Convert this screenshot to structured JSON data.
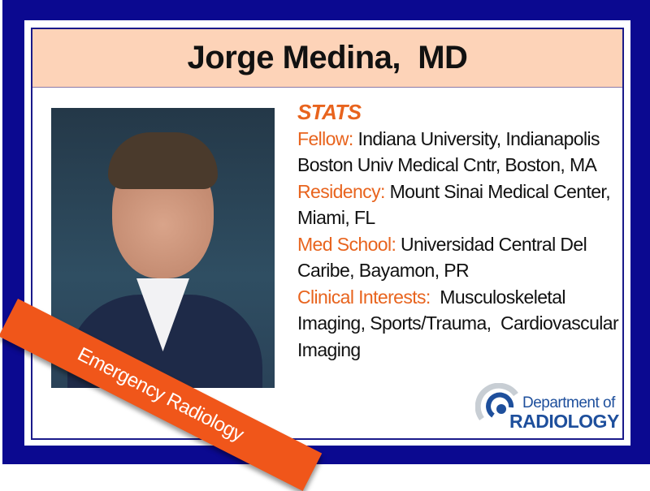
{
  "header": {
    "name": "Jorge Medina,  MD"
  },
  "stats": {
    "title": "STATS",
    "items": [
      {
        "label": "Fellow:",
        "value": " Indiana University, Indianapolis Boston Univ Medical Cntr, Boston, MA"
      },
      {
        "label": "Residency:",
        "value": " Mount Sinai Medical Center, Miami, FL"
      },
      {
        "label": "Med School:",
        "value": " Universidad Central Del Caribe, Bayamon, PR"
      },
      {
        "label": "Clinical Interests:",
        "value": "  Musculoskeletal Imaging, Sports/Trauma,  Cardiovascular Imaging"
      }
    ]
  },
  "banner": {
    "text": "Emergency Radiology"
  },
  "logo": {
    "line1": "Department of",
    "line2": "RADIOLOGY"
  },
  "colors": {
    "background": "#0b0990",
    "header": "#fdd3b8",
    "accent": "#e8641e",
    "banner": "#f0561a",
    "logo": "#1e4f9c"
  }
}
